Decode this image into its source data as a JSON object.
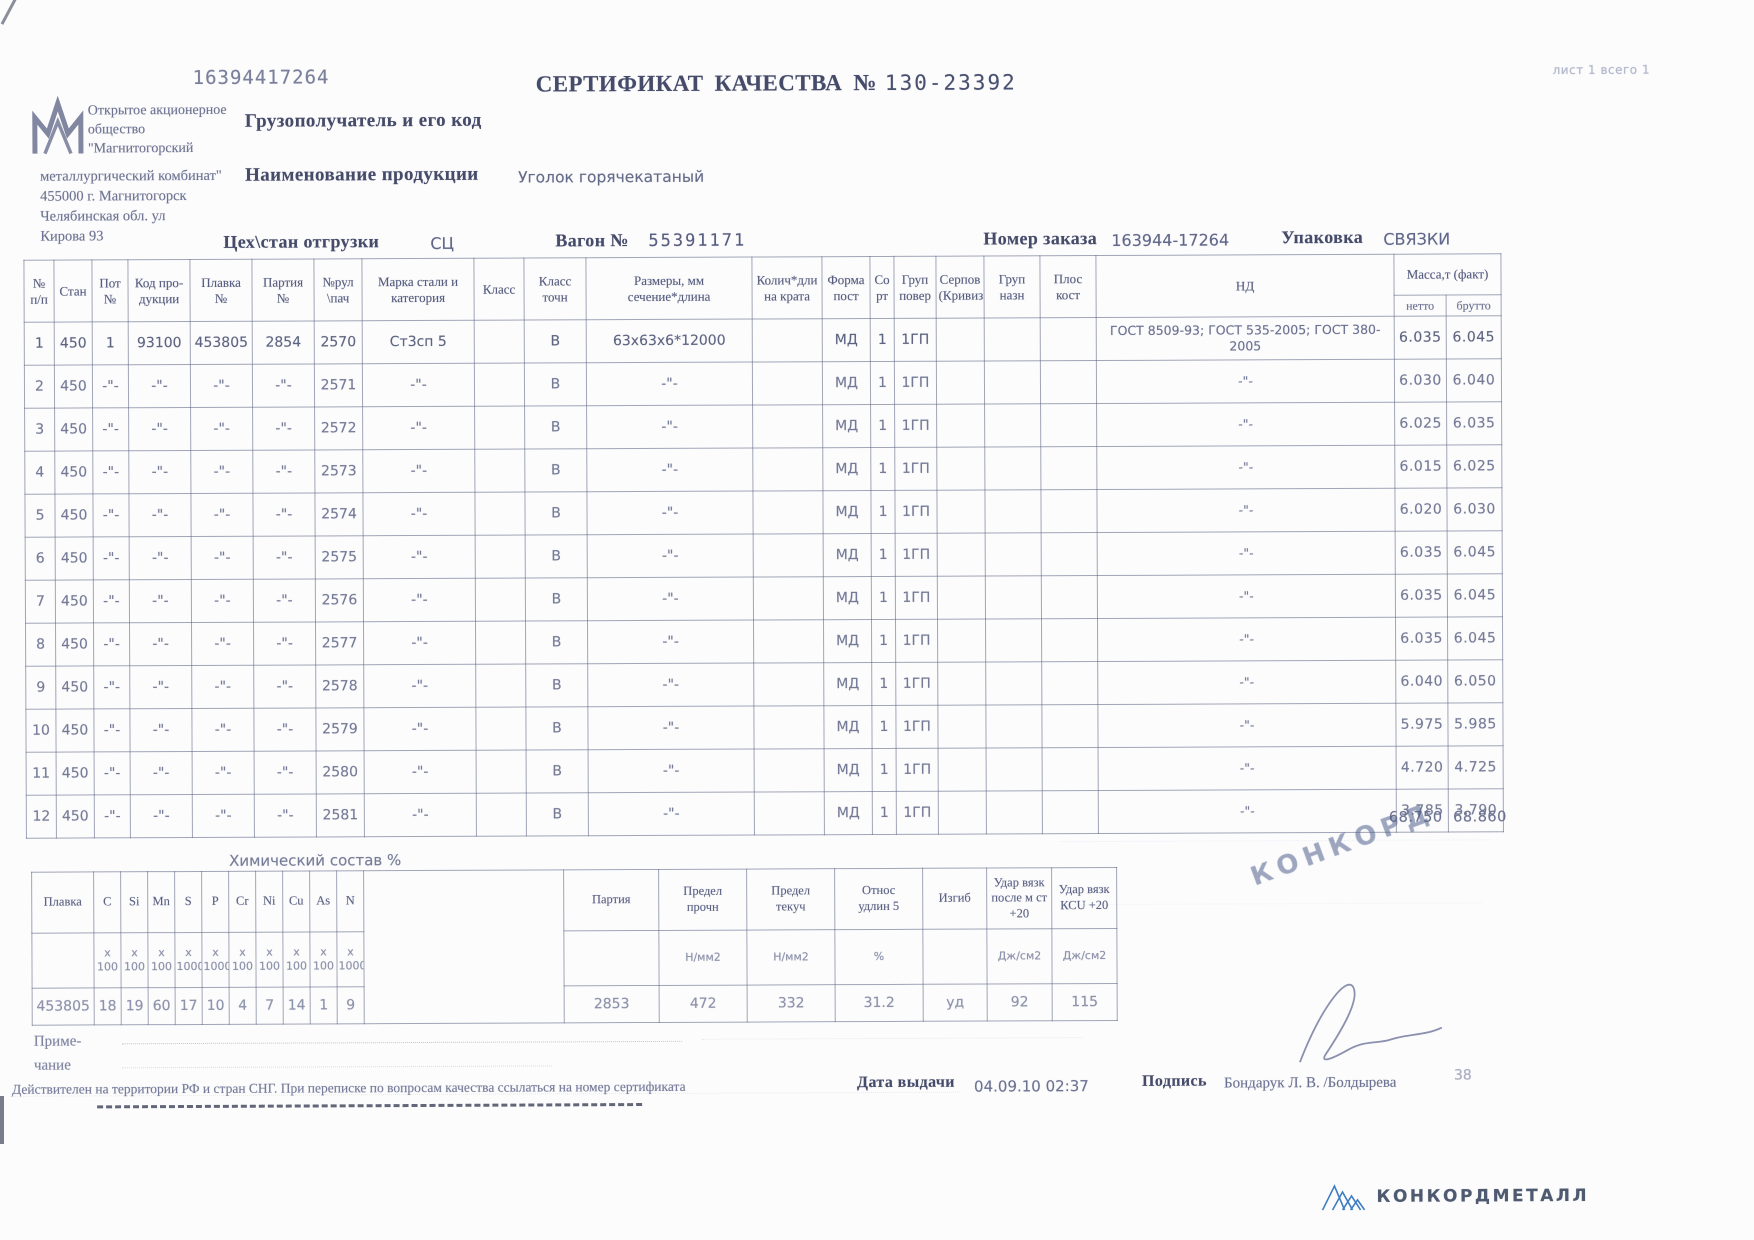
{
  "header": {
    "doc_code": "16394417264",
    "title_label": "СЕРТИФИКАТ КАЧЕСТВА №",
    "cert_number": "130-23392",
    "sheet_info": "лист 1 всего 1",
    "company_top": "Открытое акционерное\nобщество\n\"Магнитогорский",
    "company_bottom": "металлургический комбинат\"\n455000 г. Магнитогорск\nЧелябинская обл.  ул\nКирова 93",
    "consignee_label": "Грузополучатель и его код",
    "product_label": "Наименование продукции",
    "product_value": "Уголок горячекатаный",
    "shop_label": "Цех\\стан отгрузки",
    "shop_value": "СЦ",
    "wagon_label": "Вагон №",
    "wagon_value": "55391171",
    "order_label": "Номер заказа",
    "order_value": "163944-17264",
    "packing_label": "Упаковка",
    "packing_value": "СВЯЗКИ"
  },
  "main_table": {
    "headers": [
      "№\nп/п",
      "Стан",
      "Пот\n№",
      "Код про-\nдукции",
      "Плавка\n№",
      "Партия\n№",
      "№рул\n\\пач",
      "Марка стали и\nкатегория",
      "Класс",
      "Класс\nточн",
      "Размеры, мм\nсечение*длина",
      "Колич*дли\nна крата",
      "Форма\nпост",
      "Со\nрт",
      "Груп\nповер",
      "Серпов\n(Кривиз)",
      "Груп\nназн",
      "Плос\nкост",
      "НД",
      "Масса,т (факт)",
      "нетто",
      "брутто"
    ],
    "rows": [
      [
        "1",
        "450",
        "1",
        "93100",
        "453805",
        "2854",
        "2570",
        "Ст3сп 5",
        "",
        "В",
        "63х63х6*12000",
        "",
        "МД",
        "1",
        "1ГП",
        "",
        "",
        "",
        "ГОСТ 8509-93; ГОСТ 535-2005; ГОСТ 380-2005",
        "6.035",
        "6.045"
      ],
      [
        "2",
        "450",
        "-\"-",
        "-\"-",
        "-\"-",
        "-\"-",
        "2571",
        "-\"-",
        "",
        "В",
        "-\"-",
        "",
        "МД",
        "1",
        "1ГП",
        "",
        "",
        "",
        "-\"-",
        "6.030",
        "6.040"
      ],
      [
        "3",
        "450",
        "-\"-",
        "-\"-",
        "-\"-",
        "-\"-",
        "2572",
        "-\"-",
        "",
        "В",
        "-\"-",
        "",
        "МД",
        "1",
        "1ГП",
        "",
        "",
        "",
        "-\"-",
        "6.025",
        "6.035"
      ],
      [
        "4",
        "450",
        "-\"-",
        "-\"-",
        "-\"-",
        "-\"-",
        "2573",
        "-\"-",
        "",
        "В",
        "-\"-",
        "",
        "МД",
        "1",
        "1ГП",
        "",
        "",
        "",
        "-\"-",
        "6.015",
        "6.025"
      ],
      [
        "5",
        "450",
        "-\"-",
        "-\"-",
        "-\"-",
        "-\"-",
        "2574",
        "-\"-",
        "",
        "В",
        "-\"-",
        "",
        "МД",
        "1",
        "1ГП",
        "",
        "",
        "",
        "-\"-",
        "6.020",
        "6.030"
      ],
      [
        "6",
        "450",
        "-\"-",
        "-\"-",
        "-\"-",
        "-\"-",
        "2575",
        "-\"-",
        "",
        "В",
        "-\"-",
        "",
        "МД",
        "1",
        "1ГП",
        "",
        "",
        "",
        "-\"-",
        "6.035",
        "6.045"
      ],
      [
        "7",
        "450",
        "-\"-",
        "-\"-",
        "-\"-",
        "-\"-",
        "2576",
        "-\"-",
        "",
        "В",
        "-\"-",
        "",
        "МД",
        "1",
        "1ГП",
        "",
        "",
        "",
        "-\"-",
        "6.035",
        "6.045"
      ],
      [
        "8",
        "450",
        "-\"-",
        "-\"-",
        "-\"-",
        "-\"-",
        "2577",
        "-\"-",
        "",
        "В",
        "-\"-",
        "",
        "МД",
        "1",
        "1ГП",
        "",
        "",
        "",
        "-\"-",
        "6.035",
        "6.045"
      ],
      [
        "9",
        "450",
        "-\"-",
        "-\"-",
        "-\"-",
        "-\"-",
        "2578",
        "-\"-",
        "",
        "В",
        "-\"-",
        "",
        "МД",
        "1",
        "1ГП",
        "",
        "",
        "",
        "-\"-",
        "6.040",
        "6.050"
      ],
      [
        "10",
        "450",
        "-\"-",
        "-\"-",
        "-\"-",
        "-\"-",
        "2579",
        "-\"-",
        "",
        "В",
        "-\"-",
        "",
        "МД",
        "1",
        "1ГП",
        "",
        "",
        "",
        "-\"-",
        "5.975",
        "5.985"
      ],
      [
        "11",
        "450",
        "-\"-",
        "-\"-",
        "-\"-",
        "-\"-",
        "2580",
        "-\"-",
        "",
        "В",
        "-\"-",
        "",
        "МД",
        "1",
        "1ГП",
        "",
        "",
        "",
        "-\"-",
        "4.720",
        "4.725"
      ],
      [
        "12",
        "450",
        "-\"-",
        "-\"-",
        "-\"-",
        "-\"-",
        "2581",
        "-\"-",
        "",
        "В",
        "-\"-",
        "",
        "МД",
        "1",
        "1ГП",
        "",
        "",
        "",
        "-\"-",
        "3.785",
        "3.790"
      ]
    ],
    "totals": {
      "netto": "68.750",
      "brutto": "68.860"
    }
  },
  "chem": {
    "title": "Химический состав %",
    "headers": [
      "Плавка",
      "C",
      "Si",
      "Mn",
      "S",
      "P",
      "Cr",
      "Ni",
      "Cu",
      "As",
      "N"
    ],
    "multipliers": [
      "",
      "х\n100",
      "х\n100",
      "х\n100",
      "х\n1000",
      "х\n1000",
      "х\n100",
      "х\n100",
      "х\n100",
      "х\n100",
      "х\n1000"
    ],
    "values": [
      "453805",
      "18",
      "19",
      "60",
      "17",
      "10",
      "4",
      "7",
      "14",
      "1",
      "9"
    ]
  },
  "mech": {
    "headers": [
      "Партия",
      "Предел\nпрочн",
      "Предел\nтекуч",
      "Относ\nудлин 5",
      "Изгиб",
      "Удар вязк\nпосле м ст\n+20",
      "Удар вязк\nКСU +20"
    ],
    "units": [
      "",
      "Н/мм2",
      "Н/мм2",
      "%",
      "",
      "Дж/см2",
      "Дж/см2"
    ],
    "values": [
      "2853",
      "472",
      "332",
      "31.2",
      "уд",
      "92",
      "115"
    ]
  },
  "footer": {
    "note_label": "Приме-\nчание",
    "validity_text": "Действителен на территории РФ и стран СНГ. При переписке по вопросам качества ссылаться на номер сертификата",
    "date_label": "Дата выдачи",
    "date_value": "04.09.10 02:37",
    "sign_label": "Подпись",
    "sign_value": "Бондарук Л. В. /Болдырева",
    "page_mark": "38",
    "brand_name": "КОНКОРДМЕТАЛЛ",
    "stamp_text": "КОНКОРД",
    "brand_color": "#3f7cc0"
  }
}
